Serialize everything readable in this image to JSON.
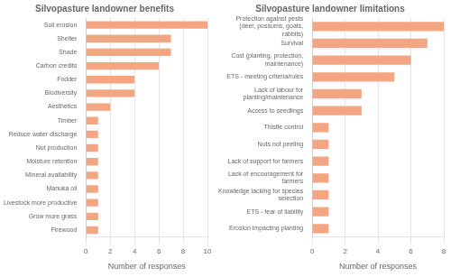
{
  "chart_data": [
    {
      "type": "bar",
      "orientation": "horizontal",
      "title": "Silvopasture landowner benefits",
      "xlabel": "Number of responses",
      "categories": [
        "Soil erosion",
        "Shelter",
        "Shade",
        "Carbon credits",
        "Fodder",
        "Biodiversity",
        "Aesthetics",
        "Timber",
        "Reduce water discharge",
        "Nut production",
        "Moisture retention",
        "Mineral availability",
        "Manuka oil",
        "Livestock more productive",
        "Grow more grass",
        "Firewood"
      ],
      "values": [
        10,
        7,
        7,
        6,
        4,
        4,
        2,
        1,
        1,
        1,
        1,
        1,
        1,
        1,
        1,
        1
      ],
      "color": "#f4a582",
      "xlim": [
        0,
        10
      ],
      "xticks": [
        0,
        2,
        4,
        6,
        8,
        10
      ],
      "grid": true
    },
    {
      "type": "bar",
      "orientation": "horizontal",
      "title": "Silvopasture landowner limitations",
      "xlabel": "Number of responses",
      "categories": [
        "Protection against pests\n(deer, possums, goats,\nrabbits)",
        "Survival",
        "Cost (planting, protection,\nmaintenance)",
        "ETS - meeting criteria/rules",
        "Lack of labour for\nplanting/maintenance",
        "Access to seedlings",
        "Thistle control",
        "Nuts not peeling",
        "Lack of support for farmers",
        "Lack of encouragement for\nfarmers",
        "Knowledge lacking for species\nselection",
        "ETS - fear of liability",
        "Erosion impacting planting"
      ],
      "values": [
        8,
        7,
        6,
        5,
        3,
        3,
        1,
        1,
        1,
        1,
        1,
        1,
        1
      ],
      "color": "#f4a582",
      "xlim": [
        0,
        8
      ],
      "xticks": [
        0,
        2,
        4,
        6,
        8
      ],
      "grid": true
    }
  ]
}
